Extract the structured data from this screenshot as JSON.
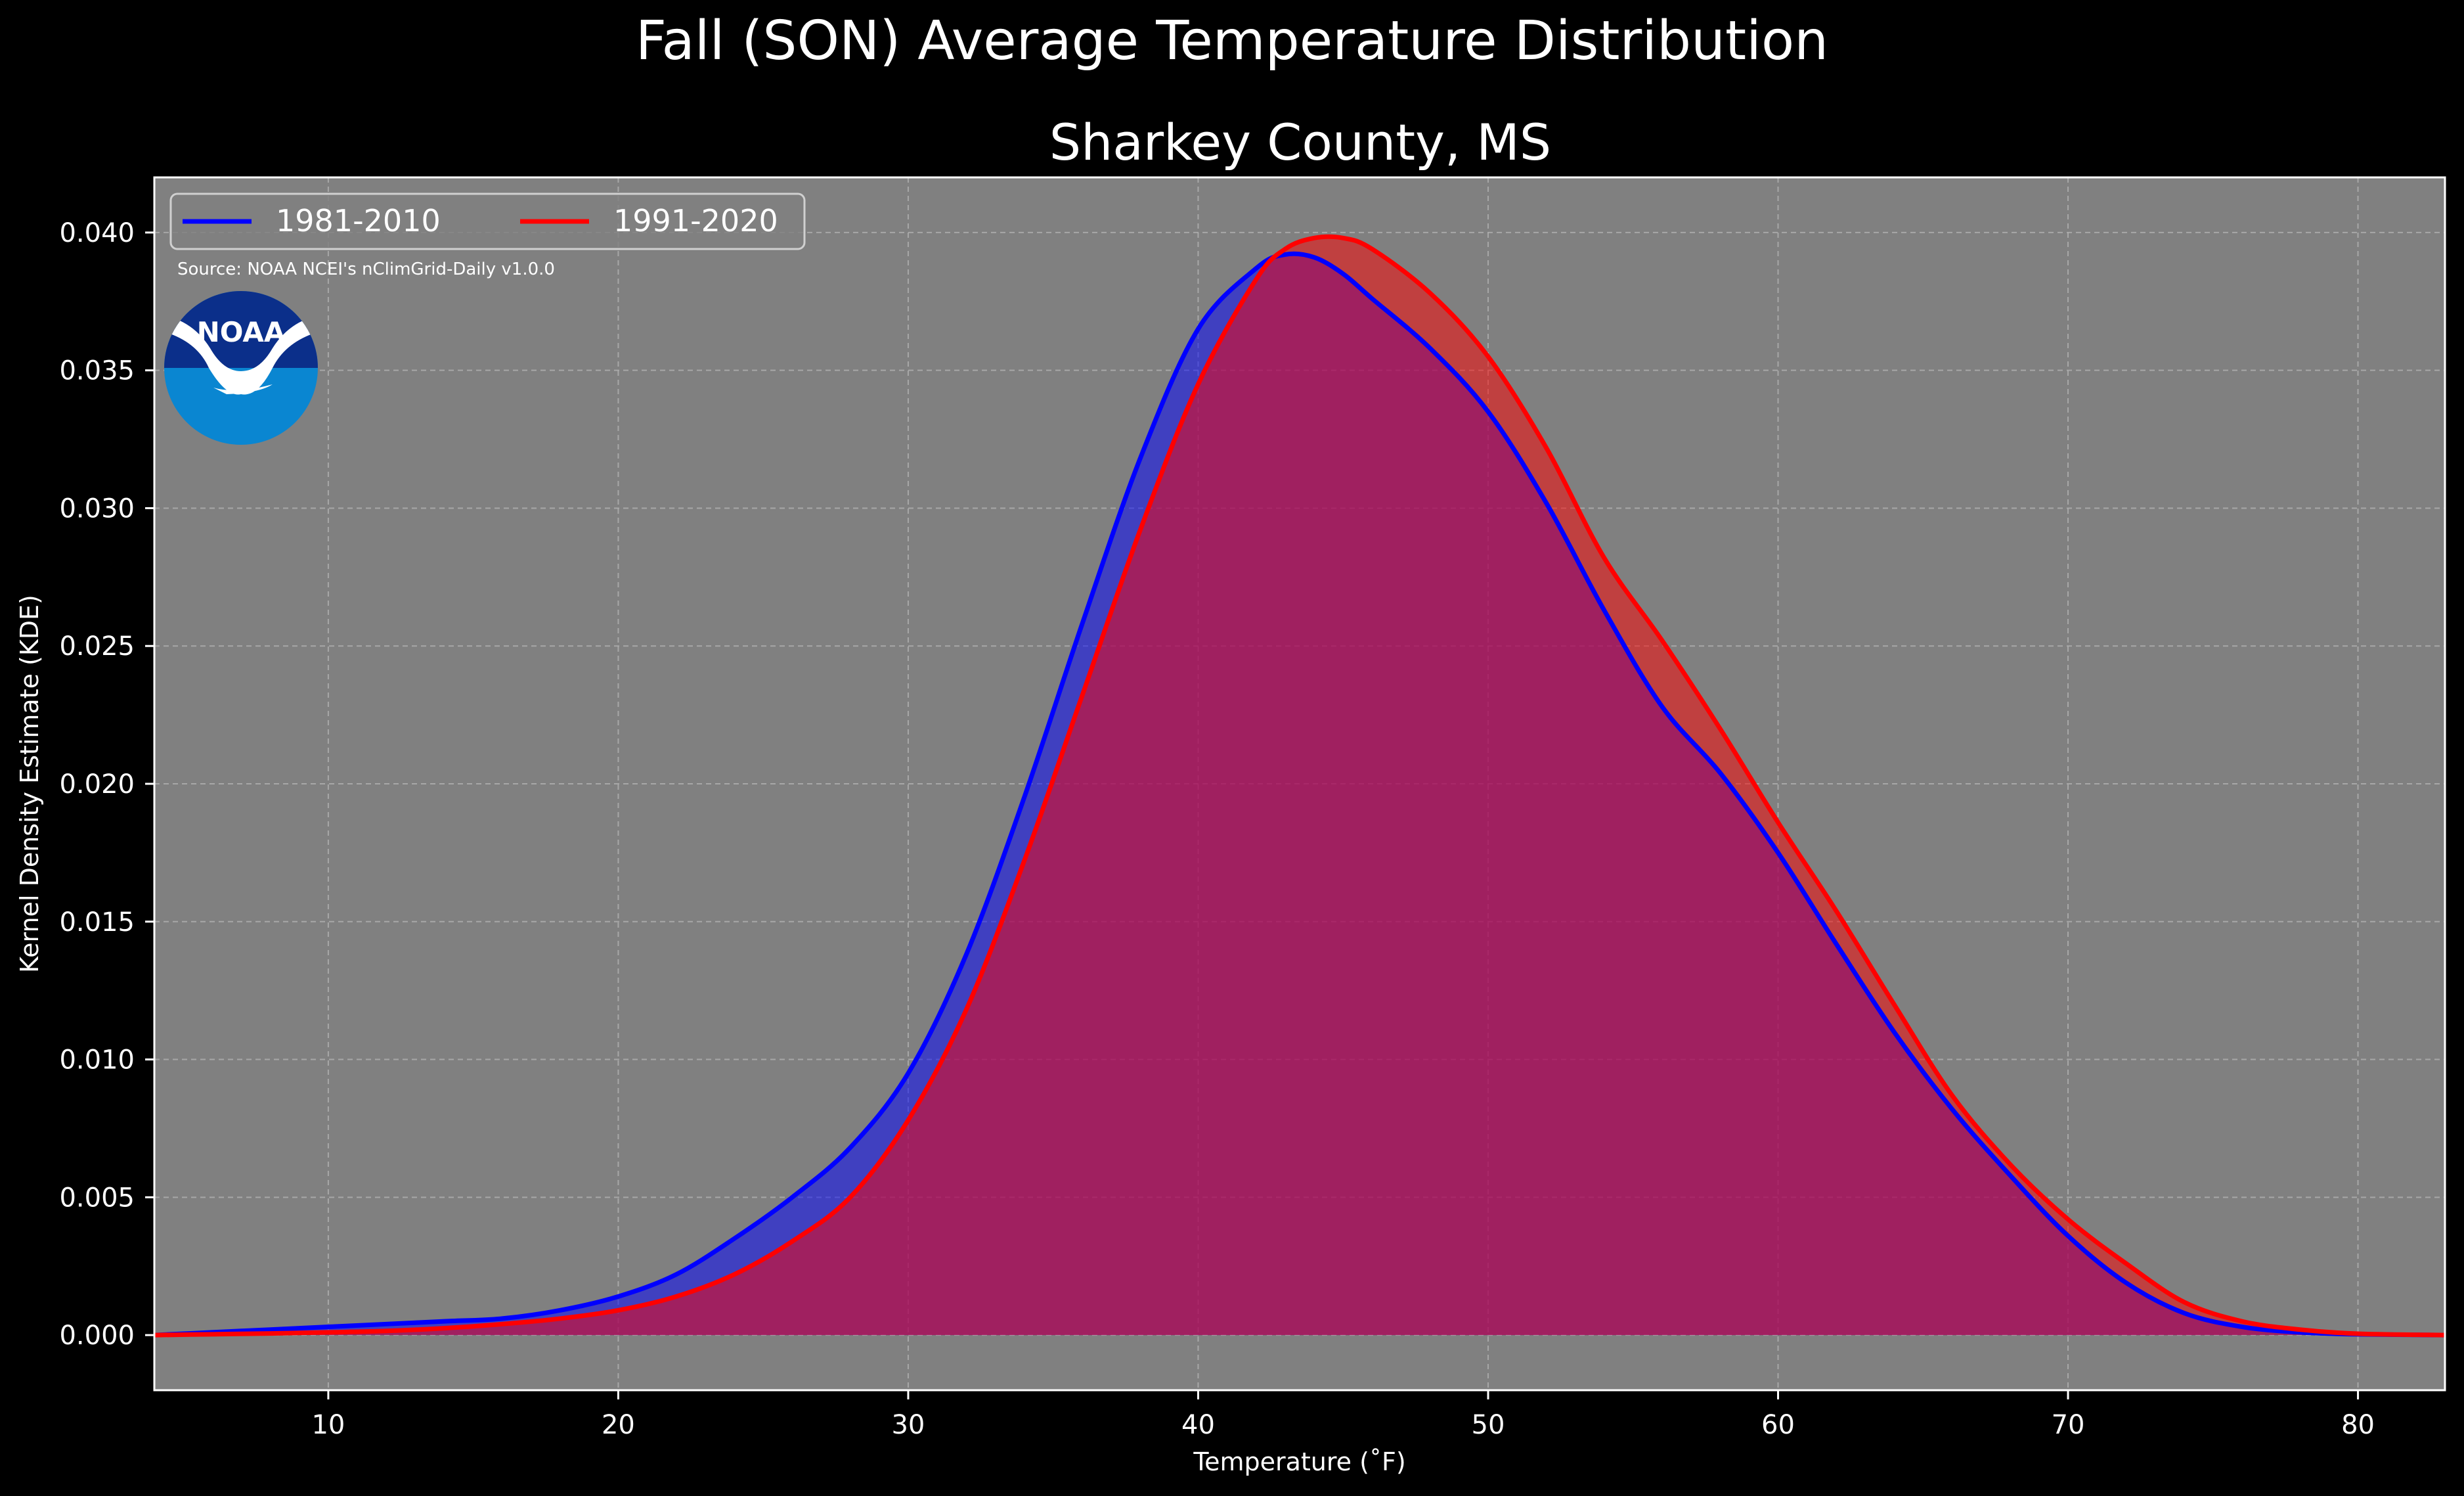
{
  "colors": {
    "background": "#000000",
    "plot_background": "#808080",
    "series_1981_2010": "#0000ff",
    "series_1991_2020": "#ff0000",
    "fill_1981_2010": "rgba(0,0,255,0.5)",
    "fill_1991_2020": "rgba(255,0,0,0.5)"
  },
  "source_note": "Source: NOAA NCEI's nClimGrid-Daily v1.0.0",
  "logo": {
    "name": "noaa-logo",
    "text": "NOAA"
  },
  "chart_data": {
    "type": "area",
    "title": "Fall (SON) Average Temperature Distribution",
    "subtitle": "Sharkey County, MS",
    "xlabel": "Temperature ($^\\circ$F)",
    "xlabel_display": "Temperature (˚F)",
    "ylabel": "Kernel Density Estimate (KDE)",
    "xlim": [
      4,
      83
    ],
    "ylim": [
      -0.002,
      0.042
    ],
    "grid": true,
    "legend_position": "top-left",
    "x_ticks": [
      10,
      20,
      30,
      40,
      50,
      60,
      70,
      80
    ],
    "x_tick_labels": [
      "10",
      "20",
      "30",
      "40",
      "50",
      "60",
      "70",
      "80"
    ],
    "y_ticks": [
      0.0,
      0.005,
      0.01,
      0.015,
      0.02,
      0.025,
      0.03,
      0.035,
      0.04
    ],
    "y_tick_labels": [
      "0.000",
      "0.005",
      "0.010",
      "0.015",
      "0.020",
      "0.025",
      "0.030",
      "0.035",
      "0.040"
    ],
    "series": [
      {
        "name": "1981-2010",
        "x": [
          4,
          6,
          8,
          10,
          12,
          14,
          16,
          18,
          20,
          22,
          24,
          26,
          28,
          30,
          32,
          34,
          36,
          38,
          40,
          42,
          43,
          44,
          45,
          46,
          48,
          50,
          52,
          54,
          56,
          58,
          60,
          62,
          64,
          66,
          68,
          70,
          72,
          74,
          76,
          78,
          80,
          83
        ],
        "values": [
          0.0,
          0.0001,
          0.0002,
          0.0003,
          0.0004,
          0.0005,
          0.0006,
          0.0009,
          0.0014,
          0.0022,
          0.0035,
          0.005,
          0.0068,
          0.0095,
          0.0138,
          0.0195,
          0.0258,
          0.0318,
          0.0365,
          0.0387,
          0.0392,
          0.0391,
          0.0385,
          0.0376,
          0.0358,
          0.0335,
          0.0302,
          0.0263,
          0.0228,
          0.0204,
          0.0175,
          0.0142,
          0.011,
          0.0082,
          0.0058,
          0.0036,
          0.0019,
          0.0008,
          0.0003,
          0.0001,
          3e-05,
          0.0
        ]
      },
      {
        "name": "1991-2020",
        "x": [
          4,
          6,
          8,
          10,
          12,
          14,
          16,
          18,
          20,
          22,
          24,
          26,
          28,
          30,
          32,
          34,
          36,
          38,
          40,
          42,
          43,
          44,
          45,
          46,
          48,
          50,
          52,
          54,
          56,
          58,
          60,
          62,
          64,
          66,
          68,
          70,
          72,
          74,
          76,
          78,
          80,
          83
        ],
        "values": [
          0.0,
          3e-05,
          6e-05,
          0.0001,
          0.00015,
          0.00025,
          0.0004,
          0.0006,
          0.0009,
          0.0014,
          0.0022,
          0.0034,
          0.005,
          0.0078,
          0.0118,
          0.0172,
          0.0232,
          0.0292,
          0.0345,
          0.0383,
          0.0394,
          0.0398,
          0.0398,
          0.0394,
          0.0378,
          0.0355,
          0.0322,
          0.0282,
          0.0252,
          0.022,
          0.0186,
          0.0154,
          0.012,
          0.0087,
          0.0062,
          0.0042,
          0.0026,
          0.0012,
          0.0005,
          0.0002,
          5e-05,
          0.0
        ]
      }
    ]
  }
}
